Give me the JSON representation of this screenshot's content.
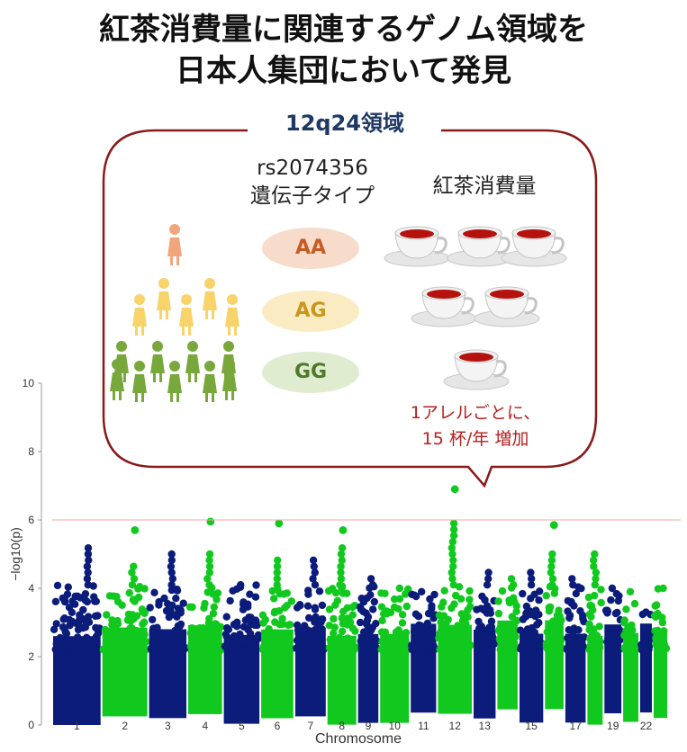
{
  "title": {
    "line1": "紅茶消費量に関連するゲノム領域を",
    "line2": "日本人集団において発見"
  },
  "callout": {
    "region": "12q24領域",
    "snp_line1": "rs2074356",
    "snp_line2": "遺伝子タイプ",
    "consumption_label": "紅茶消費量",
    "genotypes": [
      {
        "label": "AA",
        "cups": 3,
        "people": 1,
        "color": "#f2a57a"
      },
      {
        "label": "AG",
        "cups": 2,
        "people": 5,
        "color": "#f8d36a"
      },
      {
        "label": "GG",
        "cups": 1,
        "people": 9,
        "color": "#78a83c"
      }
    ],
    "effect_line1": "1アレルごとに、",
    "effect_line2": "15 杯/年 増加"
  },
  "chart_data": {
    "type": "scatter",
    "plot_kind": "manhattan",
    "xlabel": "Chromosome",
    "ylabel": "−log10(p)",
    "ylim": [
      0,
      10
    ],
    "yticks": [
      0,
      2,
      4,
      6,
      8,
      10
    ],
    "threshold": 6,
    "colors": {
      "odd": "#0b1c7a",
      "even": "#11c91e",
      "threshold": "#f4a6a6"
    },
    "chromosomes": [
      {
        "chr": "1",
        "top": 5.3,
        "tip": 5.3
      },
      {
        "chr": "2",
        "top": 4.7,
        "tip": 5.7
      },
      {
        "chr": "3",
        "top": 5.0,
        "tip": 5.0
      },
      {
        "chr": "4",
        "top": 5.0,
        "tip": 5.95
      },
      {
        "chr": "5",
        "top": 4.2,
        "tip": 4.2
      },
      {
        "chr": "6",
        "top": 4.9,
        "tip": 5.9
      },
      {
        "chr": "7",
        "top": 4.9,
        "tip": 4.9
      },
      {
        "chr": "8",
        "top": 5.2,
        "tip": 5.7
      },
      {
        "chr": "9",
        "top": 4.3,
        "tip": 4.3
      },
      {
        "chr": "10",
        "top": 4.0,
        "tip": 4.0
      },
      {
        "chr": "11",
        "top": 3.9,
        "tip": 3.9
      },
      {
        "chr": "12",
        "top": 6.0,
        "tip": 6.9
      },
      {
        "chr": "13",
        "top": 4.6,
        "tip": 4.6
      },
      {
        "chr": "14",
        "top": 4.4,
        "tip": 4.4
      },
      {
        "chr": "15",
        "top": 4.5,
        "tip": 4.5
      },
      {
        "chr": "16",
        "top": 5.0,
        "tip": 5.85
      },
      {
        "chr": "17",
        "top": 4.3,
        "tip": 4.3
      },
      {
        "chr": "18",
        "top": 5.0,
        "tip": 5.0
      },
      {
        "chr": "19",
        "top": 4.0,
        "tip": 4.0
      },
      {
        "chr": "20",
        "top": 3.9,
        "tip": 3.9
      },
      {
        "chr": "21",
        "top": 3.3,
        "tip": 3.3
      },
      {
        "chr": "22",
        "top": 4.0,
        "tip": 4.0
      }
    ],
    "xtick_labels": [
      "1",
      "2",
      "3",
      "4",
      "5",
      "6",
      "7",
      "8",
      "9",
      "10",
      "11",
      "12",
      "13",
      "",
      "15",
      "",
      "17",
      "",
      "19",
      "",
      "22",
      ""
    ]
  }
}
